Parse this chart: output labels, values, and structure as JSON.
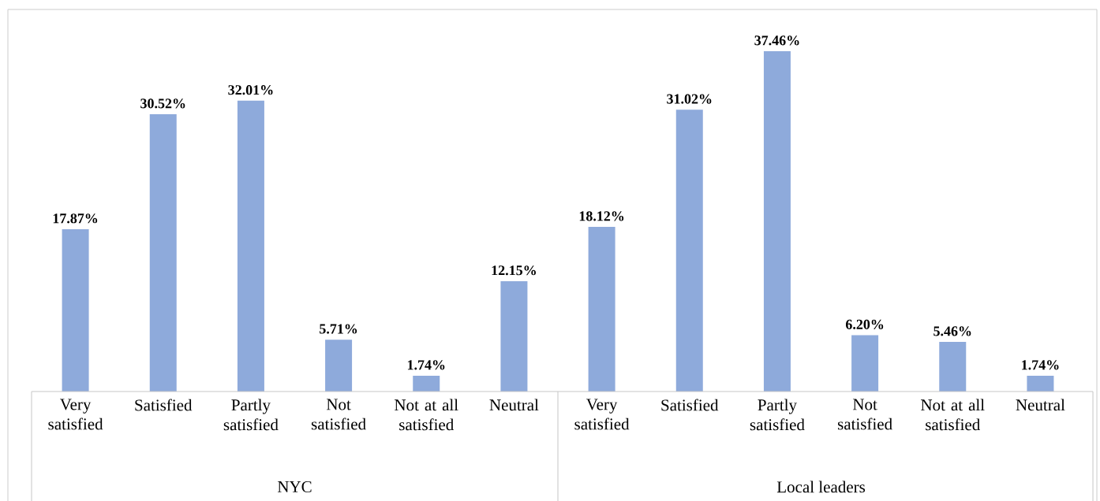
{
  "chart_data": [
    {
      "type": "bar",
      "xlabel": "NYC",
      "color": "#8eaadb",
      "categories": [
        "Very satisfied",
        "Satisfied",
        "Partly satisfied",
        "Not satisfied",
        "Not at all satisfied",
        "Neutral"
      ],
      "values": [
        17.87,
        30.52,
        32.01,
        5.71,
        1.74,
        12.15
      ],
      "value_labels": [
        "17.87%",
        "30.52%",
        "32.01%",
        "5.71%",
        "1.74%",
        "12.15%"
      ]
    },
    {
      "type": "bar",
      "xlabel": "Local leaders",
      "color": "#8eaadb",
      "categories": [
        "Very satisfied",
        "Satisfied",
        "Partly satisfied",
        "Not satisfied",
        "Not at all satisfied",
        "Neutral"
      ],
      "values": [
        18.12,
        31.02,
        37.46,
        6.2,
        5.46,
        1.74
      ],
      "value_labels": [
        "18.12%",
        "31.02%",
        "37.46%",
        "6.20%",
        "5.46%",
        "1.74%"
      ]
    }
  ]
}
